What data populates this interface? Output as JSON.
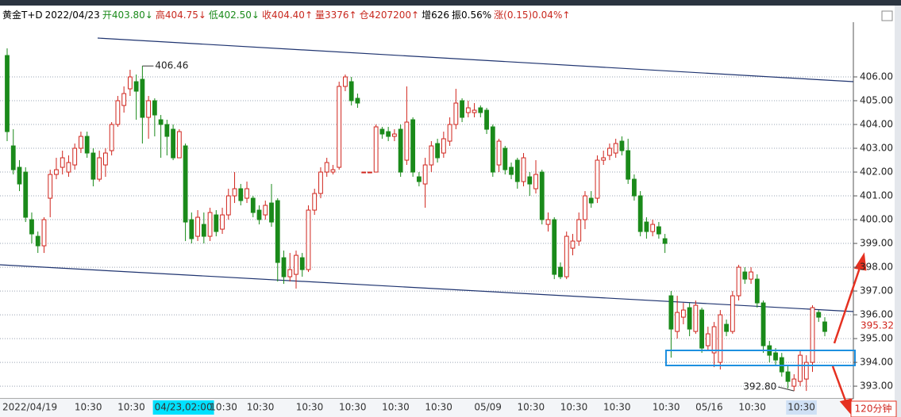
{
  "header": {
    "items": [
      {
        "text": "黄金T+D",
        "color": "#000000"
      },
      {
        "text": "2022/04/23",
        "color": "#000000"
      },
      {
        "text": "开403.80↓",
        "color": "#1a8a1a"
      },
      {
        "text": "高404.75↓",
        "color": "#c8281e"
      },
      {
        "text": "低402.50↓",
        "color": "#1a8a1a"
      },
      {
        "text": "收404.40↑",
        "color": "#c8281e"
      },
      {
        "text": "量3376↑",
        "color": "#c8281e"
      },
      {
        "text": "仓4207200↑",
        "color": "#c8281e"
      },
      {
        "text": "增626",
        "color": "#000000"
      },
      {
        "text": "振0.56%",
        "color": "#000000"
      },
      {
        "text": "涨(0.15)0.04%↑",
        "color": "#c8281e"
      }
    ]
  },
  "chart_data": {
    "type": "candlestick",
    "up_color": "#d0241c",
    "down_color": "#1a8a1a",
    "ylim": [
      392.47,
      408.3
    ],
    "yticks": [
      {
        "value": 393,
        "label": "393.00"
      },
      {
        "value": 394,
        "label": "394.00"
      },
      {
        "value": 395,
        "label": "395.00"
      },
      {
        "value": 396,
        "label": "396.00"
      },
      {
        "value": 397,
        "label": "397.00"
      },
      {
        "value": 398,
        "label": "398.00"
      },
      {
        "value": 399,
        "label": "399.00"
      },
      {
        "value": 400,
        "label": "400.00"
      },
      {
        "value": 401,
        "label": "401.00"
      },
      {
        "value": 402,
        "label": "402.00"
      },
      {
        "value": 403,
        "label": "403.00"
      },
      {
        "value": 404,
        "label": "404.00"
      },
      {
        "value": 405,
        "label": "405.00"
      },
      {
        "value": 406,
        "label": "406.00"
      }
    ],
    "grid": true,
    "categories": [
      "2022/04/19",
      null,
      null,
      null,
      null,
      null,
      null,
      null,
      null,
      null,
      null,
      null,
      "10:30",
      null,
      null,
      null,
      null,
      null,
      null,
      "10:30",
      null,
      null,
      null,
      null,
      null,
      "04/23,02:00",
      null,
      null,
      null,
      null,
      null,
      null,
      null,
      null,
      "10:30",
      null,
      null,
      null,
      null,
      null,
      "10:30",
      null,
      null,
      null,
      null,
      null,
      null,
      null,
      "10:30",
      null,
      null,
      null,
      null,
      null,
      null,
      "10:30",
      null,
      null,
      null,
      null,
      null,
      null,
      "10:30",
      null,
      null,
      null,
      null,
      null,
      null,
      "10:30",
      null,
      null,
      null,
      null,
      null,
      null,
      null,
      "05/09",
      null,
      null,
      null,
      null,
      null,
      null,
      "10:30",
      null,
      null,
      null,
      null,
      null,
      null,
      "10:30",
      null,
      null,
      null,
      null,
      null,
      null,
      "10:30",
      null,
      null,
      null,
      null,
      null,
      null,
      null,
      "10:30",
      null,
      null,
      null,
      null,
      null,
      null,
      "05/16",
      null,
      null,
      null,
      null,
      null,
      null,
      "10:30",
      null,
      null,
      null,
      null,
      null,
      null,
      null,
      "10:30",
      null,
      null,
      null,
      null,
      null
    ],
    "open": [
      406.9,
      403.1,
      402.2,
      402.0,
      400.0,
      399.3,
      398.9,
      400.9,
      401.9,
      402.2,
      402.0,
      402.3,
      403.0,
      403.5,
      402.8,
      401.7,
      402.3,
      402.9,
      404.0,
      404.8,
      405.5,
      405.8,
      405.9,
      404.3,
      405.0,
      404.2,
      404.0,
      403.8,
      402.6,
      403.1,
      400.0,
      399.3,
      399.8,
      399.3,
      400.2,
      399.6,
      400.2,
      401.0,
      401.3,
      400.9,
      400.9,
      400.4,
      400.2,
      400.7,
      400.8,
      398.4,
      397.6,
      397.7,
      398.4,
      397.9,
      400.4,
      401.1,
      402.0,
      402.0,
      402.2,
      405.6,
      405.8,
      405.1,
      402.0,
      402.0,
      402.0,
      403.8,
      403.7,
      403.5,
      403.8,
      402.5,
      404.2,
      401.8,
      401.5,
      402.3,
      403.2,
      402.8,
      403.3,
      404.0,
      405.0,
      404.5,
      404.5,
      404.7,
      404.6,
      403.9,
      402.3,
      403.0,
      402.2,
      402.5,
      401.6,
      401.8,
      401.3,
      402.0,
      399.8,
      400.0,
      398.0,
      397.6,
      398.8,
      399.1,
      400.0,
      400.9,
      400.9,
      402.5,
      402.7,
      402.8,
      403.3,
      402.9,
      401.7,
      401.0,
      399.9,
      399.5,
      399.7,
      399.2,
      396.8,
      395.3,
      395.9,
      396.3,
      395.3,
      396.2,
      394.7,
      394.4,
      394.0,
      395.6,
      395.3,
      396.8,
      397.8,
      397.5,
      397.5,
      396.5,
      394.7,
      394.4,
      394.2,
      393.6,
      393.0,
      393.2,
      393.3,
      394.0,
      396.1,
      395.7
    ],
    "high": [
      407.2,
      403.8,
      402.5,
      402.2,
      400.3,
      399.5,
      400.1,
      402.1,
      402.6,
      402.9,
      402.7,
      403.2,
      403.7,
      403.7,
      403.0,
      402.9,
      403.0,
      404.1,
      405.2,
      405.6,
      406.3,
      406.1,
      406.46,
      405.2,
      405.1,
      404.4,
      404.2,
      404.0,
      403.8,
      403.2,
      400.3,
      400.4,
      400.3,
      400.5,
      400.4,
      400.5,
      401.3,
      402.0,
      401.5,
      401.6,
      401.0,
      400.6,
      400.8,
      401.5,
      400.9,
      398.7,
      398.6,
      398.7,
      398.6,
      400.6,
      401.3,
      402.2,
      402.6,
      402.3,
      405.8,
      406.1,
      406.0,
      405.3,
      402.0,
      402.0,
      404.0,
      403.9,
      403.9,
      403.8,
      404.0,
      405.6,
      404.3,
      402.0,
      402.6,
      403.3,
      403.4,
      403.7,
      404.3,
      405.5,
      405.1,
      405.0,
      404.9,
      404.8,
      404.7,
      404.0,
      403.4,
      403.1,
      402.4,
      402.6,
      402.8,
      402.0,
      402.5,
      402.1,
      400.3,
      400.1,
      398.2,
      399.5,
      399.4,
      400.3,
      401.2,
      401.2,
      402.7,
      402.9,
      403.2,
      403.4,
      403.5,
      403.4,
      401.9,
      401.2,
      400.1,
      400.0,
      399.9,
      399.4,
      397.0,
      396.8,
      396.5,
      396.5,
      396.6,
      396.3,
      395.5,
      395.7,
      396.2,
      395.8,
      397.0,
      398.1,
      398.0,
      398.0,
      397.7,
      396.6,
      394.9,
      394.6,
      394.4,
      393.9,
      393.5,
      394.5,
      394.3,
      396.4,
      396.2,
      395.9
    ],
    "low": [
      403.3,
      401.9,
      401.2,
      399.9,
      399.0,
      398.6,
      398.6,
      400.1,
      401.7,
      401.9,
      401.8,
      402.1,
      402.8,
      402.6,
      401.4,
      401.6,
      401.8,
      402.7,
      403.9,
      404.5,
      405.2,
      404.2,
      403.2,
      403.4,
      403.5,
      402.6,
      402.7,
      402.5,
      402.6,
      399.1,
      399.0,
      399.1,
      399.0,
      399.1,
      399.3,
      399.4,
      400.0,
      400.7,
      400.6,
      400.7,
      400.1,
      399.8,
      400.0,
      399.7,
      397.4,
      397.3,
      397.4,
      397.1,
      397.6,
      397.8,
      400.2,
      400.9,
      401.8,
      401.9,
      402.1,
      405.4,
      404.8,
      404.7,
      402.0,
      402.0,
      402.0,
      403.4,
      403.3,
      403.3,
      401.8,
      402.3,
      401.8,
      401.4,
      400.5,
      402.0,
      402.4,
      402.6,
      403.1,
      403.8,
      404.1,
      404.3,
      404.3,
      404.3,
      403.6,
      401.8,
      402.0,
      401.9,
      401.7,
      401.3,
      401.4,
      401.0,
      401.1,
      399.8,
      399.5,
      397.5,
      397.5,
      397.5,
      398.5,
      398.9,
      399.6,
      400.5,
      400.7,
      402.3,
      402.5,
      402.6,
      402.7,
      401.5,
      400.8,
      399.3,
      399.2,
      399.3,
      399.2,
      398.6,
      394.2,
      395.0,
      395.6,
      395.1,
      395.2,
      394.4,
      394.5,
      393.8,
      393.7,
      395.1,
      395.2,
      396.6,
      397.3,
      397.3,
      396.3,
      394.4,
      394.0,
      393.9,
      393.4,
      392.9,
      392.8,
      393.0,
      392.8,
      393.6,
      395.7,
      395.1
    ],
    "close": [
      403.7,
      402.1,
      401.5,
      400.1,
      399.4,
      398.9,
      400.0,
      401.9,
      402.1,
      402.6,
      402.4,
      403.0,
      403.5,
      402.8,
      401.7,
      402.6,
      402.8,
      404.0,
      405.0,
      405.3,
      406.0,
      405.4,
      404.3,
      405.0,
      404.4,
      404.0,
      403.5,
      402.6,
      403.7,
      399.9,
      399.2,
      400.1,
      399.3,
      400.3,
      399.5,
      400.2,
      401.0,
      401.3,
      400.8,
      401.3,
      400.3,
      400.0,
      400.6,
      399.9,
      398.2,
      397.6,
      397.9,
      398.5,
      397.9,
      400.4,
      401.1,
      402.0,
      402.4,
      402.1,
      405.6,
      406.0,
      405.0,
      404.9,
      402.0,
      402.0,
      403.9,
      403.6,
      403.5,
      403.6,
      402.0,
      404.1,
      402.0,
      401.6,
      402.3,
      403.1,
      402.6,
      403.4,
      404.0,
      404.9,
      404.3,
      404.7,
      404.6,
      404.5,
      403.8,
      402.0,
      403.3,
      402.1,
      401.9,
      401.6,
      402.6,
      401.5,
      401.9,
      400.0,
      400.0,
      397.7,
      397.6,
      399.3,
      399.1,
      400.0,
      401.0,
      400.7,
      402.5,
      402.6,
      403.0,
      403.2,
      402.9,
      401.7,
      401.0,
      399.5,
      399.5,
      399.8,
      399.4,
      399.0,
      395.4,
      396.1,
      396.2,
      395.4,
      396.4,
      394.6,
      395.2,
      395.5,
      396.0,
      395.3,
      396.8,
      398.0,
      397.5,
      397.8,
      396.5,
      394.7,
      394.3,
      394.1,
      393.6,
      393.2,
      393.3,
      394.3,
      394.0,
      396.3,
      395.9,
      395.3
    ],
    "high_label": 406.46,
    "low_label": {
      "value": 392.8,
      "label": "392.80"
    },
    "last_price": 395.32,
    "period": "120分钟"
  }
}
